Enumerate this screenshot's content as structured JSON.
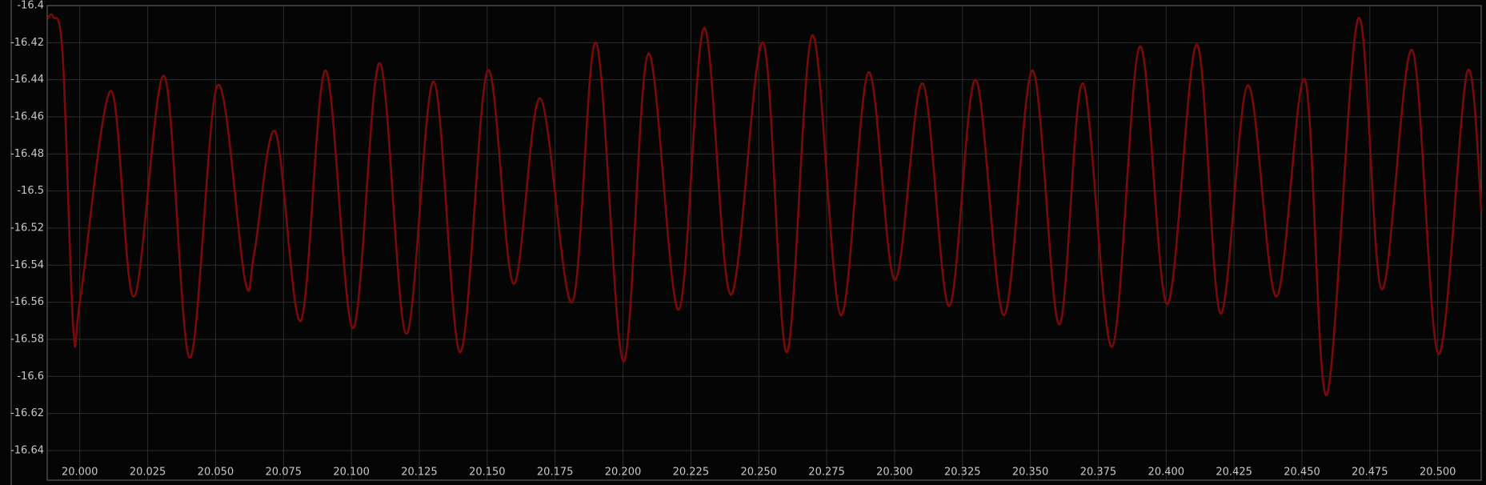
{
  "chart_data": {
    "type": "line",
    "x": [
      19.9881,
      19.9902,
      19.9937,
      19.9976,
      20.0003,
      20.0115,
      20.0199,
      20.0311,
      20.0405,
      20.0507,
      20.0608,
      20.0643,
      20.072,
      20.0814,
      20.0905,
      20.1006,
      20.1104,
      20.1202,
      20.1303,
      20.1401,
      20.1502,
      20.1597,
      20.1695,
      20.1813,
      20.1901,
      20.2002,
      20.2093,
      20.2205,
      20.2299,
      20.2397,
      20.2516,
      20.2603,
      20.2697,
      20.2802,
      20.2904,
      20.3001,
      20.3103,
      20.3201,
      20.3298,
      20.3403,
      20.3508,
      20.3606,
      20.3693,
      20.3801,
      20.3903,
      20.4004,
      20.4113,
      20.42,
      20.4301,
      20.4406,
      20.4511,
      20.4591,
      20.4707,
      20.4794,
      20.4906,
      20.5003,
      20.5108,
      20.5161
    ],
    "series": [
      {
        "color": "#7a0a0a",
        "values": [
          -16.407,
          -16.406,
          -16.427,
          -16.574,
          -16.557,
          -16.446,
          -16.557,
          -16.438,
          -16.59,
          -16.443,
          -16.548,
          -16.533,
          -16.468,
          -16.57,
          -16.435,
          -16.574,
          -16.431,
          -16.577,
          -16.441,
          -16.587,
          -16.435,
          -16.55,
          -16.45,
          -16.56,
          -16.42,
          -16.592,
          -16.426,
          -16.564,
          -16.412,
          -16.556,
          -16.42,
          -16.587,
          -16.416,
          -16.567,
          -16.436,
          -16.548,
          -16.442,
          -16.562,
          -16.44,
          -16.567,
          -16.435,
          -16.572,
          -16.442,
          -16.584,
          -16.422,
          -16.561,
          -16.421,
          -16.566,
          -16.443,
          -16.557,
          -16.44,
          -16.61,
          -16.407,
          -16.553,
          -16.424,
          -16.588,
          -16.436,
          -16.511
        ]
      }
    ],
    "xlim": [
      19.988,
      20.516
    ],
    "ylim": [
      -16.656,
      -16.4
    ],
    "xticks": [
      {
        "value": 20.0,
        "label": "20.000"
      },
      {
        "value": 20.025,
        "label": "20.025"
      },
      {
        "value": 20.05,
        "label": "20.050"
      },
      {
        "value": 20.075,
        "label": "20.075"
      },
      {
        "value": 20.1,
        "label": "20.100"
      },
      {
        "value": 20.125,
        "label": "20.125"
      },
      {
        "value": 20.15,
        "label": "20.150"
      },
      {
        "value": 20.175,
        "label": "20.175"
      },
      {
        "value": 20.2,
        "label": "20.200"
      },
      {
        "value": 20.225,
        "label": "20.225"
      },
      {
        "value": 20.25,
        "label": "20.250"
      },
      {
        "value": 20.275,
        "label": "20.275"
      },
      {
        "value": 20.3,
        "label": "20.300"
      },
      {
        "value": 20.325,
        "label": "20.325"
      },
      {
        "value": 20.35,
        "label": "20.350"
      },
      {
        "value": 20.375,
        "label": "20.375"
      },
      {
        "value": 20.4,
        "label": "20.400"
      },
      {
        "value": 20.425,
        "label": "20.425"
      },
      {
        "value": 20.45,
        "label": "20.450"
      },
      {
        "value": 20.475,
        "label": "20.475"
      },
      {
        "value": 20.5,
        "label": "20.500"
      }
    ],
    "yticks": [
      -16.4,
      -16.42,
      -16.44,
      -16.46,
      -16.48,
      -16.5,
      -16.52,
      -16.54,
      -16.56,
      -16.58,
      -16.6,
      -16.62,
      -16.64
    ],
    "grid": true
  }
}
